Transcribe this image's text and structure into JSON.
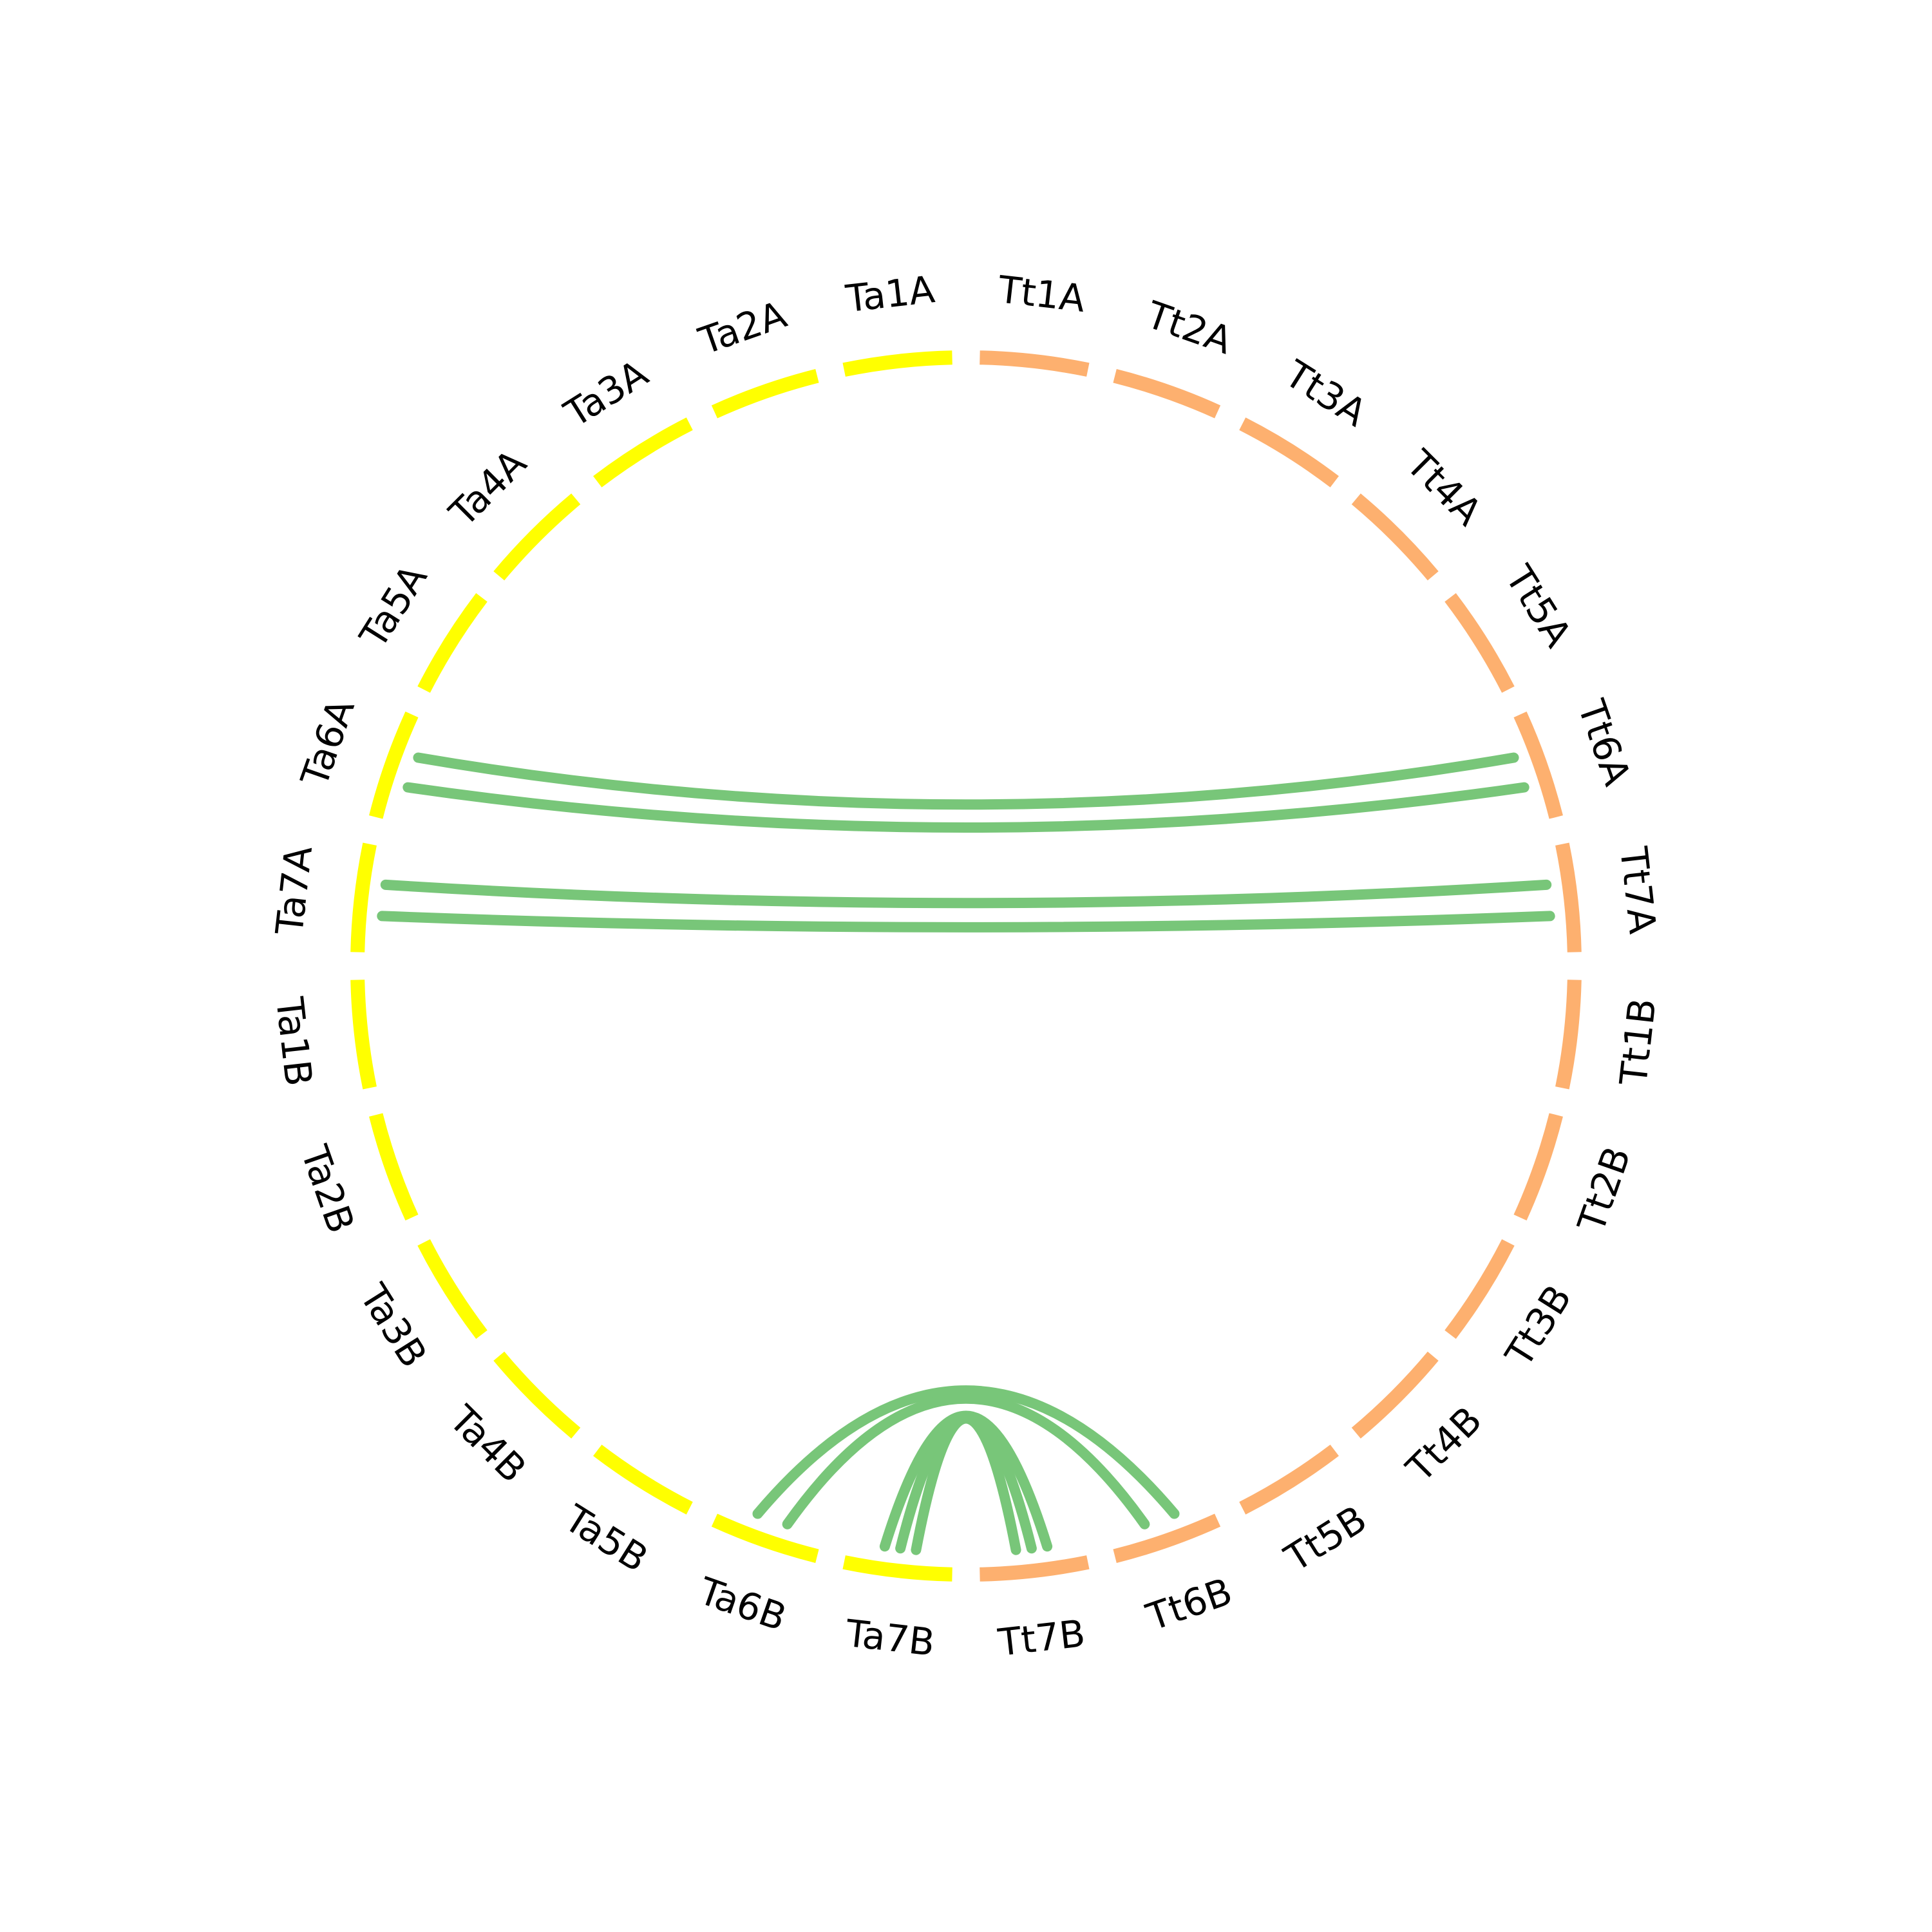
{
  "colors": {
    "background": "#ffffff",
    "genome_tt": "#fdb06f",
    "genome_ta": "#ffff00",
    "link": "#78c679",
    "label": "#000000"
  },
  "chromosomes": [
    {
      "id": "tt1a",
      "label": "Tt1A",
      "genome": "tt"
    },
    {
      "id": "tt2a",
      "label": "Tt2A",
      "genome": "tt"
    },
    {
      "id": "tt3a",
      "label": "Tt3A",
      "genome": "tt"
    },
    {
      "id": "tt4a",
      "label": "Tt4A",
      "genome": "tt"
    },
    {
      "id": "tt5a",
      "label": "Tt5A",
      "genome": "tt"
    },
    {
      "id": "tt6a",
      "label": "Tt6A",
      "genome": "tt"
    },
    {
      "id": "tt7a",
      "label": "Tt7A",
      "genome": "tt"
    },
    {
      "id": "tt1b",
      "label": "Tt1B",
      "genome": "tt"
    },
    {
      "id": "tt2b",
      "label": "Tt2B",
      "genome": "tt"
    },
    {
      "id": "tt3b",
      "label": "Tt3B",
      "genome": "tt"
    },
    {
      "id": "tt4b",
      "label": "Tt4B",
      "genome": "tt"
    },
    {
      "id": "tt5b",
      "label": "Tt5B",
      "genome": "tt"
    },
    {
      "id": "tt6b",
      "label": "Tt6B",
      "genome": "tt"
    },
    {
      "id": "tt7b",
      "label": "Tt7B",
      "genome": "tt"
    },
    {
      "id": "ta7b",
      "label": "Ta7B",
      "genome": "ta"
    },
    {
      "id": "ta6b",
      "label": "Ta6B",
      "genome": "ta"
    },
    {
      "id": "ta5b",
      "label": "Ta5B",
      "genome": "ta"
    },
    {
      "id": "ta4b",
      "label": "Ta4B",
      "genome": "ta"
    },
    {
      "id": "ta3b",
      "label": "Ta3B",
      "genome": "ta"
    },
    {
      "id": "ta2b",
      "label": "Ta2B",
      "genome": "ta"
    },
    {
      "id": "ta1b",
      "label": "Ta1B",
      "genome": "ta"
    },
    {
      "id": "ta7a",
      "label": "Ta7A",
      "genome": "ta"
    },
    {
      "id": "ta6a",
      "label": "Ta6A",
      "genome": "ta"
    },
    {
      "id": "ta5a",
      "label": "Ta5A",
      "genome": "ta"
    },
    {
      "id": "ta4a",
      "label": "Ta4A",
      "genome": "ta"
    },
    {
      "id": "ta3a",
      "label": "Ta3A",
      "genome": "ta"
    },
    {
      "id": "ta2a",
      "label": "Ta2A",
      "genome": "ta"
    },
    {
      "id": "ta1a",
      "label": "Ta1A",
      "genome": "ta"
    }
  ],
  "links": [
    {
      "from": "tt6a",
      "to": "ta6a"
    },
    {
      "from": "tt6a",
      "to": "ta6a"
    },
    {
      "from": "tt7a",
      "to": "ta7a"
    },
    {
      "from": "tt7a",
      "to": "ta7a"
    },
    {
      "from": "tt6b",
      "to": "ta6b"
    },
    {
      "from": "tt6b",
      "to": "ta6b"
    },
    {
      "from": "tt7b",
      "to": "ta7b"
    },
    {
      "from": "tt7b",
      "to": "ta7b"
    },
    {
      "from": "tt7b",
      "to": "ta7b"
    }
  ]
}
